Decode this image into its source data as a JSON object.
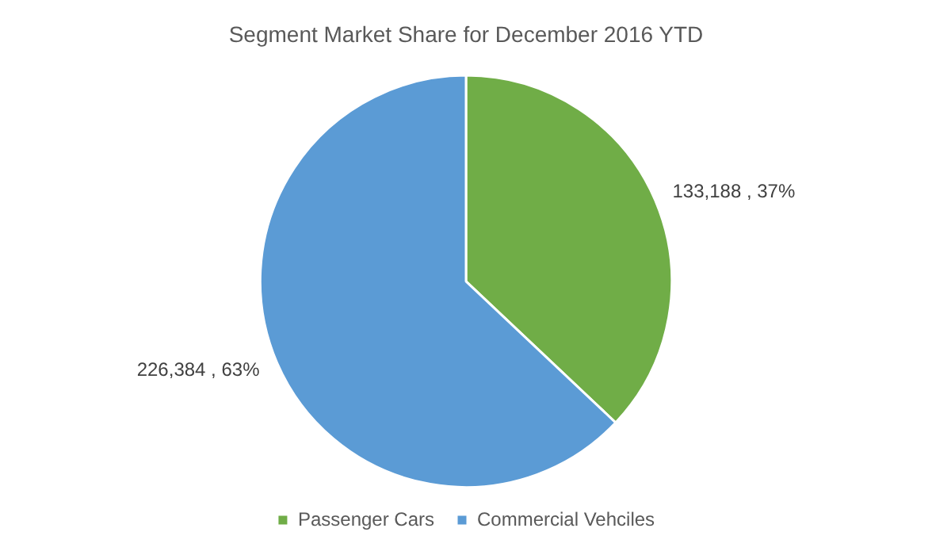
{
  "chart_data": {
    "type": "pie",
    "title": "Segment Market Share for December 2016 YTD",
    "categories": [
      "Passenger Cars",
      "Commercial Vehciles"
    ],
    "values": [
      133188,
      226384
    ],
    "colors": [
      "#70ad47",
      "#5b9bd5"
    ],
    "value_labels": [
      "133,188 , 37%",
      "226,384 , 63%"
    ],
    "legend": "bottom"
  }
}
